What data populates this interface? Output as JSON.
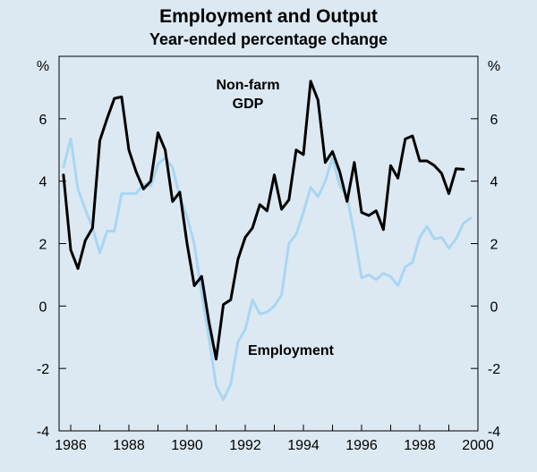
{
  "chart_data": {
    "type": "line",
    "title": "Employment and Output",
    "subtitle": "Year-ended percentage change",
    "y_unit_left": "%",
    "y_unit_right": "%",
    "ylim": [
      -4,
      8
    ],
    "xlim": [
      1985.6,
      2000.0
    ],
    "y_ticks": [
      -4,
      -2,
      0,
      2,
      4,
      6
    ],
    "x_ticks": [
      1986,
      1988,
      1990,
      1992,
      1994,
      1996,
      1998,
      2000
    ],
    "grid": false,
    "series": [
      {
        "name": "Non-farm GDP",
        "color": "#000000",
        "points": [
          [
            1985.75,
            4.2
          ],
          [
            1986.0,
            1.8
          ],
          [
            1986.25,
            1.2
          ],
          [
            1986.5,
            2.1
          ],
          [
            1986.75,
            2.5
          ],
          [
            1987.0,
            5.3
          ],
          [
            1987.25,
            6.0
          ],
          [
            1987.5,
            6.65
          ],
          [
            1987.75,
            6.7
          ],
          [
            1988.0,
            5.0
          ],
          [
            1988.25,
            4.3
          ],
          [
            1988.5,
            3.75
          ],
          [
            1988.75,
            4.0
          ],
          [
            1989.0,
            5.55
          ],
          [
            1989.25,
            5.0
          ],
          [
            1989.5,
            3.35
          ],
          [
            1989.75,
            3.65
          ],
          [
            1990.0,
            2.0
          ],
          [
            1990.25,
            0.65
          ],
          [
            1990.5,
            0.95
          ],
          [
            1990.75,
            -0.5
          ],
          [
            1991.0,
            -1.7
          ],
          [
            1991.25,
            0.05
          ],
          [
            1991.5,
            0.2
          ],
          [
            1991.75,
            1.5
          ],
          [
            1992.0,
            2.2
          ],
          [
            1992.25,
            2.5
          ],
          [
            1992.5,
            3.25
          ],
          [
            1992.75,
            3.05
          ],
          [
            1993.0,
            4.2
          ],
          [
            1993.25,
            3.1
          ],
          [
            1993.5,
            3.4
          ],
          [
            1993.75,
            5.0
          ],
          [
            1994.0,
            4.85
          ],
          [
            1994.25,
            7.2
          ],
          [
            1994.5,
            6.6
          ],
          [
            1994.75,
            4.6
          ],
          [
            1995.0,
            4.95
          ],
          [
            1995.25,
            4.3
          ],
          [
            1995.5,
            3.35
          ],
          [
            1995.75,
            4.6
          ],
          [
            1996.0,
            3.0
          ],
          [
            1996.25,
            2.9
          ],
          [
            1996.5,
            3.05
          ],
          [
            1996.75,
            2.45
          ],
          [
            1997.0,
            4.5
          ],
          [
            1997.25,
            4.1
          ],
          [
            1997.5,
            5.35
          ],
          [
            1997.75,
            5.45
          ],
          [
            1998.0,
            4.65
          ],
          [
            1998.25,
            4.65
          ],
          [
            1998.5,
            4.5
          ],
          [
            1998.75,
            4.25
          ],
          [
            1999.0,
            3.6
          ],
          [
            1999.25,
            4.4
          ],
          [
            1999.5,
            4.38
          ]
        ]
      },
      {
        "name": "Employment",
        "color": "#a9d6f2",
        "points": [
          [
            1985.75,
            4.45
          ],
          [
            1986.0,
            5.35
          ],
          [
            1986.25,
            3.75
          ],
          [
            1986.5,
            3.1
          ],
          [
            1986.75,
            2.5
          ],
          [
            1987.0,
            1.7
          ],
          [
            1987.25,
            2.4
          ],
          [
            1987.5,
            2.4
          ],
          [
            1987.75,
            3.6
          ],
          [
            1988.0,
            3.6
          ],
          [
            1988.25,
            3.6
          ],
          [
            1988.5,
            3.9
          ],
          [
            1988.75,
            3.85
          ],
          [
            1989.0,
            4.55
          ],
          [
            1989.25,
            4.75
          ],
          [
            1989.5,
            4.45
          ],
          [
            1989.75,
            3.5
          ],
          [
            1990.0,
            2.85
          ],
          [
            1990.25,
            2.0
          ],
          [
            1990.5,
            0.4
          ],
          [
            1990.75,
            -1.0
          ],
          [
            1991.0,
            -2.55
          ],
          [
            1991.25,
            -3.0
          ],
          [
            1991.5,
            -2.5
          ],
          [
            1991.75,
            -1.15
          ],
          [
            1992.0,
            -0.75
          ],
          [
            1992.25,
            0.2
          ],
          [
            1992.5,
            -0.25
          ],
          [
            1992.75,
            -0.2
          ],
          [
            1993.0,
            0.0
          ],
          [
            1993.25,
            0.35
          ],
          [
            1993.5,
            2.0
          ],
          [
            1993.75,
            2.3
          ],
          [
            1994.0,
            3.0
          ],
          [
            1994.25,
            3.8
          ],
          [
            1994.5,
            3.5
          ],
          [
            1994.75,
            4.0
          ],
          [
            1995.0,
            4.75
          ],
          [
            1995.25,
            3.85
          ],
          [
            1995.5,
            3.5
          ],
          [
            1995.75,
            2.3
          ],
          [
            1996.0,
            0.9
          ],
          [
            1996.25,
            1.0
          ],
          [
            1996.5,
            0.85
          ],
          [
            1996.75,
            1.05
          ],
          [
            1997.0,
            0.95
          ],
          [
            1997.25,
            0.65
          ],
          [
            1997.5,
            1.25
          ],
          [
            1997.75,
            1.4
          ],
          [
            1998.0,
            2.2
          ],
          [
            1998.25,
            2.55
          ],
          [
            1998.5,
            2.15
          ],
          [
            1998.75,
            2.2
          ],
          [
            1999.0,
            1.85
          ],
          [
            1999.25,
            2.15
          ],
          [
            1999.5,
            2.65
          ],
          [
            1999.75,
            2.82
          ]
        ]
      }
    ],
    "annotations": [
      {
        "series": "Non-farm GDP",
        "lines": [
          "Non-farm",
          "GDP"
        ]
      },
      {
        "series": "Employment",
        "lines": [
          "Employment"
        ]
      }
    ]
  }
}
